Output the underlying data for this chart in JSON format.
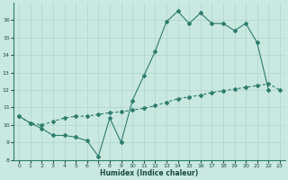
{
  "x": [
    0,
    1,
    2,
    3,
    4,
    5,
    6,
    7,
    8,
    9,
    10,
    11,
    12,
    13,
    14,
    15,
    16,
    17,
    18,
    19,
    20,
    21,
    22,
    23
  ],
  "line1": [
    10.5,
    10.1,
    9.8,
    9.4,
    9.4,
    9.3,
    9.1,
    8.2,
    10.4,
    9.0,
    11.4,
    12.8,
    14.2,
    15.9,
    16.5,
    15.8,
    16.4,
    15.8,
    15.8,
    15.4,
    15.8,
    14.7,
    12.0,
    null
  ],
  "line2": [
    10.5,
    10.1,
    10.0,
    10.2,
    10.4,
    10.5,
    10.5,
    10.6,
    10.7,
    10.75,
    10.85,
    10.95,
    11.1,
    11.3,
    11.5,
    11.6,
    11.7,
    11.85,
    11.95,
    12.05,
    12.15,
    12.25,
    12.35,
    12.0
  ],
  "line_color": "#2e7d6e",
  "bg_color": "#c8e8e0",
  "grid_color": "#b0d4cc",
  "xlabel": "Humidex (Indice chaleur)",
  "ylim": [
    8,
    17
  ],
  "xlim": [
    -0.5,
    23.5
  ],
  "yticks": [
    8,
    9,
    10,
    11,
    12,
    13,
    14,
    15,
    16
  ],
  "xticks": [
    0,
    1,
    2,
    3,
    4,
    5,
    6,
    7,
    8,
    9,
    10,
    11,
    12,
    13,
    14,
    15,
    16,
    17,
    18,
    19,
    20,
    21,
    22,
    23
  ]
}
